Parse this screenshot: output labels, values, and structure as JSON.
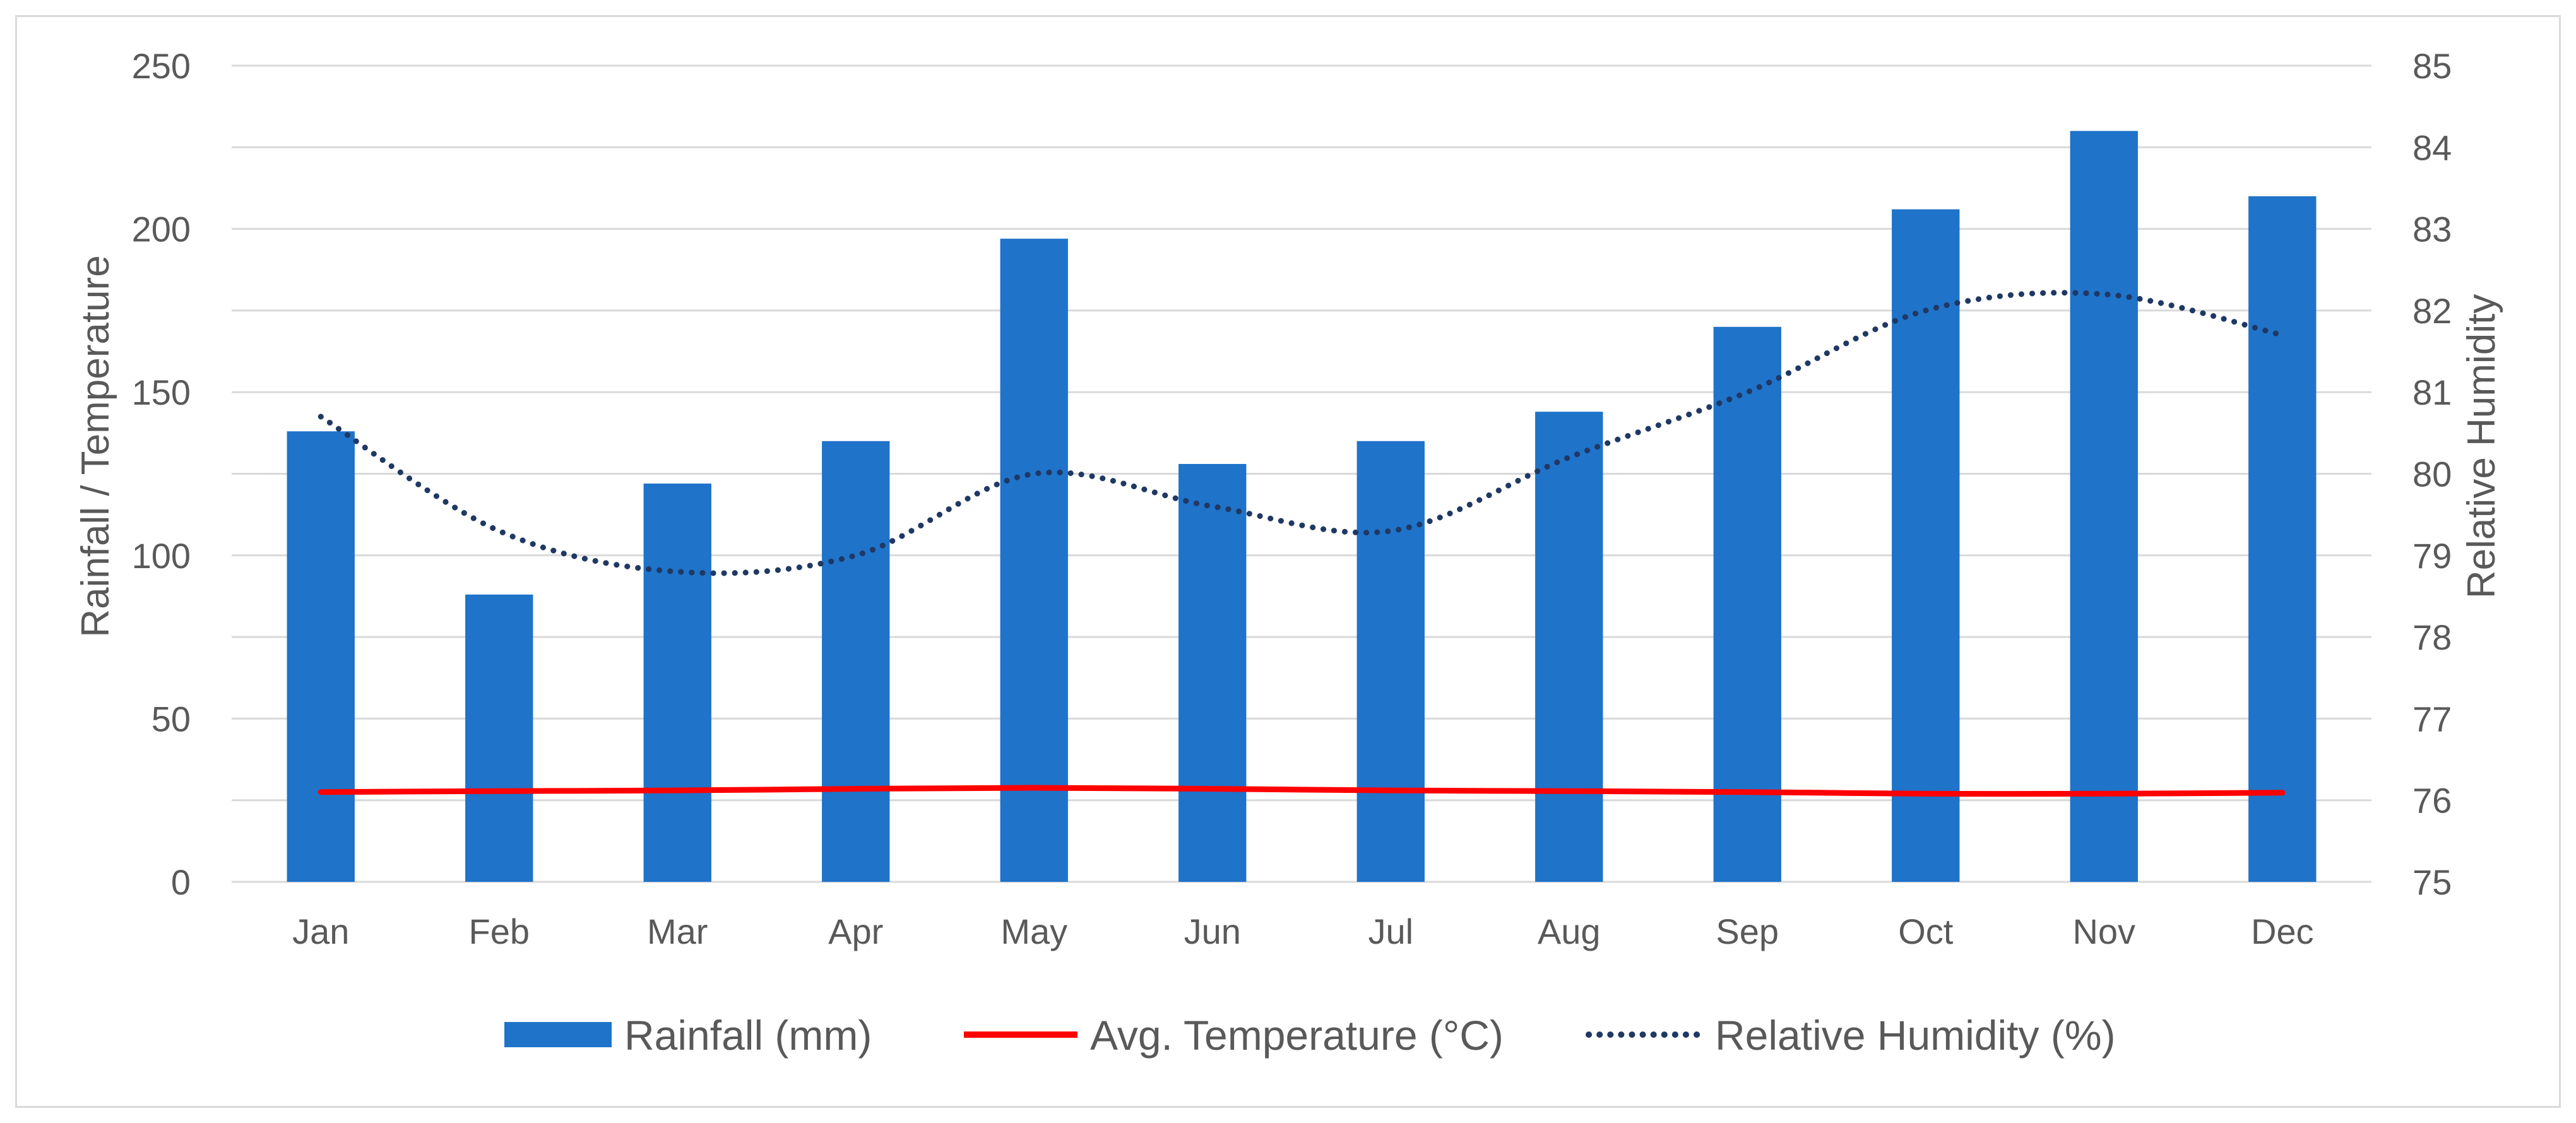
{
  "chart_data": {
    "type": "bar",
    "title": "",
    "categories": [
      "Jan",
      "Feb",
      "Mar",
      "Apr",
      "May",
      "Jun",
      "Jul",
      "Aug",
      "Sep",
      "Oct",
      "Nov",
      "Dec"
    ],
    "series": [
      {
        "name": "Rainfall (mm)",
        "type": "bar",
        "axis": "left",
        "color": "#1f73c9",
        "values": [
          138,
          88,
          122,
          135,
          197,
          128,
          135,
          144,
          170,
          206,
          230,
          210
        ]
      },
      {
        "name": "Avg. Temperature (°C)",
        "type": "line",
        "axis": "left",
        "color": "#ff0000",
        "values": [
          27.5,
          27.8,
          28,
          28.5,
          28.8,
          28.5,
          28,
          27.8,
          27.5,
          27,
          27,
          27.3
        ]
      },
      {
        "name": "Relative Humidity (%)",
        "type": "line",
        "style": "dotted",
        "axis": "right",
        "color": "#1f3864",
        "values": [
          80.7,
          79.3,
          78.8,
          79.0,
          80.0,
          79.6,
          79.3,
          80.2,
          81.0,
          82.0,
          82.2,
          81.7
        ]
      }
    ],
    "ylabel": "Rainfall / Temperature",
    "ylim": [
      0,
      250
    ],
    "yticks": [
      "0",
      "50",
      "100",
      "150",
      "200",
      "250"
    ],
    "y2label": "Relative Humidity",
    "y2lim": [
      75,
      85
    ],
    "y2ticks": [
      "75",
      "76",
      "77",
      "78",
      "79",
      "80",
      "81",
      "82",
      "83",
      "84",
      "85"
    ],
    "grid": true,
    "legend": "bottom-center"
  }
}
